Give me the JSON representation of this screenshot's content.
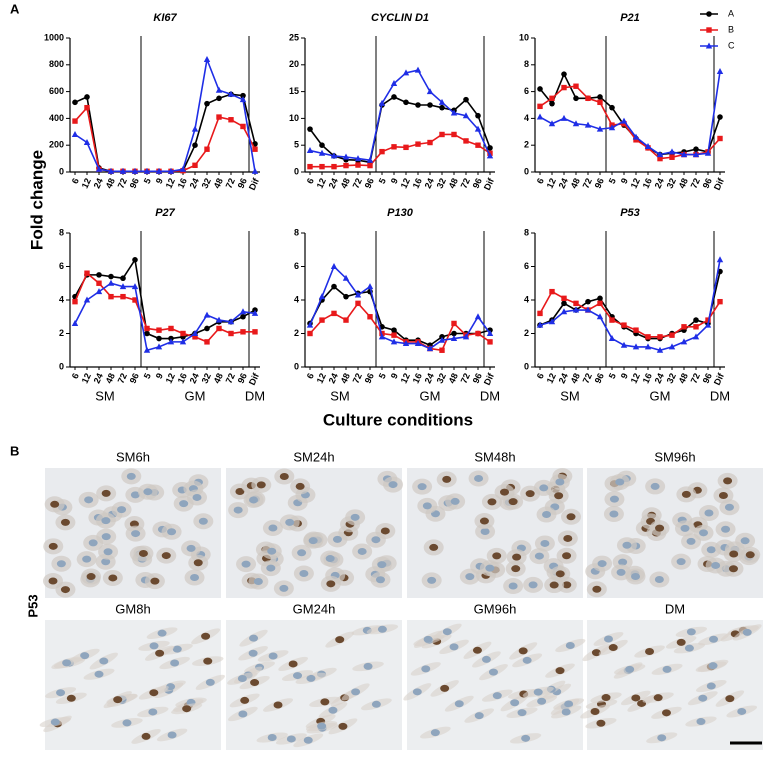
{
  "panel_labels": [
    "A",
    "B"
  ],
  "y_label": "Fold change",
  "x_label": "Culture conditions",
  "legend_position": "top-right",
  "chart_data": [
    {
      "type": "line",
      "title": "KI67",
      "categories": [
        "6",
        "12",
        "24",
        "48",
        "72",
        "96",
        "5",
        "9",
        "12",
        "16",
        "24",
        "32",
        "48",
        "72",
        "96",
        "Dif"
      ],
      "ylim": [
        0,
        1000
      ],
      "yticks": [
        0,
        200,
        400,
        600,
        800,
        1000
      ],
      "series": [
        {
          "name": "A",
          "color": "#000000",
          "marker": "circle",
          "values": [
            520,
            560,
            30,
            5,
            5,
            5,
            5,
            5,
            5,
            10,
            200,
            510,
            550,
            580,
            570,
            210
          ]
        },
        {
          "name": "B",
          "color": "#e8191b",
          "marker": "square",
          "values": [
            380,
            480,
            20,
            5,
            5,
            5,
            5,
            5,
            5,
            10,
            50,
            170,
            410,
            390,
            340,
            170
          ]
        },
        {
          "name": "C",
          "color": "#1f2ee6",
          "marker": "triangle",
          "values": [
            280,
            220,
            20,
            5,
            5,
            5,
            5,
            5,
            5,
            20,
            320,
            840,
            610,
            580,
            540,
            5
          ]
        }
      ]
    },
    {
      "type": "line",
      "title": "CYCLIN D1",
      "categories": [
        "6",
        "12",
        "24",
        "48",
        "72",
        "96",
        "5",
        "9",
        "12",
        "16",
        "24",
        "32",
        "48",
        "72",
        "96",
        "Dif"
      ],
      "ylim": [
        0,
        25
      ],
      "yticks": [
        0,
        5,
        10,
        15,
        20,
        25
      ],
      "series": [
        {
          "color": "#000000",
          "marker": "circle",
          "values": [
            8,
            5,
            3,
            2.3,
            2.2,
            1.8,
            12.5,
            14,
            13,
            12.5,
            12.5,
            12,
            11.5,
            13.5,
            10.5,
            4.5
          ]
        },
        {
          "color": "#e8191b",
          "marker": "square",
          "values": [
            1,
            1,
            1,
            1.2,
            1.3,
            1.2,
            3.8,
            4.7,
            4.6,
            5.2,
            5.5,
            7,
            7,
            5.8,
            5,
            3.5
          ]
        },
        {
          "color": "#1f2ee6",
          "marker": "triangle",
          "values": [
            4,
            3.5,
            3,
            2.8,
            2.5,
            2.2,
            12.8,
            16.5,
            18.5,
            19,
            15,
            13,
            11,
            10.5,
            8,
            3
          ]
        }
      ]
    },
    {
      "type": "line",
      "title": "P21",
      "categories": [
        "6",
        "12",
        "24",
        "48",
        "72",
        "96",
        "5",
        "9",
        "12",
        "16",
        "24",
        "32",
        "48",
        "72",
        "96",
        "Dif"
      ],
      "ylim": [
        0,
        10
      ],
      "yticks": [
        0,
        2,
        4,
        6,
        8,
        10
      ],
      "series": [
        {
          "color": "#000000",
          "marker": "circle",
          "values": [
            6.2,
            5.1,
            7.3,
            5.5,
            5.5,
            5.6,
            4.8,
            3.5,
            2.5,
            1.8,
            1.3,
            1.4,
            1.5,
            1.7,
            1.5,
            4.1
          ]
        },
        {
          "color": "#e8191b",
          "marker": "square",
          "values": [
            4.9,
            5.5,
            6.3,
            6.4,
            5.5,
            5.2,
            3.5,
            3.6,
            2.4,
            1.8,
            1.0,
            1.1,
            1.3,
            1.3,
            1.5,
            2.5
          ]
        },
        {
          "color": "#1f2ee6",
          "marker": "triangle",
          "values": [
            4.1,
            3.6,
            4.0,
            3.6,
            3.5,
            3.2,
            3.3,
            3.8,
            2.6,
            1.9,
            1.3,
            1.5,
            1.3,
            1.3,
            1.4,
            7.5
          ]
        }
      ]
    },
    {
      "type": "line",
      "title": "P27",
      "categories": [
        "6",
        "12",
        "24",
        "48",
        "72",
        "96",
        "5",
        "9",
        "12",
        "16",
        "24",
        "32",
        "48",
        "72",
        "96",
        "Dif"
      ],
      "groups": [
        "SM",
        "GM",
        "DM"
      ],
      "ylim": [
        0,
        8
      ],
      "yticks": [
        0,
        2,
        4,
        6,
        8
      ],
      "series": [
        {
          "color": "#000000",
          "marker": "circle",
          "values": [
            4.2,
            5.5,
            5.5,
            5.4,
            5.3,
            6.4,
            2.0,
            1.7,
            1.7,
            1.8,
            2.0,
            2.3,
            2.7,
            2.7,
            3.0,
            3.4
          ]
        },
        {
          "color": "#e8191b",
          "marker": "square",
          "values": [
            3.9,
            5.6,
            5.0,
            4.2,
            4.2,
            4.0,
            2.3,
            2.2,
            2.3,
            2.0,
            1.8,
            1.5,
            2.3,
            2.0,
            2.1,
            2.1
          ]
        },
        {
          "color": "#1f2ee6",
          "marker": "triangle",
          "values": [
            2.6,
            4.0,
            4.5,
            5.0,
            4.8,
            4.8,
            1.0,
            1.2,
            1.5,
            1.5,
            2.0,
            3.1,
            2.8,
            2.7,
            3.3,
            3.2
          ]
        }
      ]
    },
    {
      "type": "line",
      "title": "P130",
      "categories": [
        "6",
        "12",
        "24",
        "48",
        "72",
        "96",
        "5",
        "9",
        "12",
        "16",
        "24",
        "32",
        "48",
        "72",
        "96",
        "Dif"
      ],
      "groups": [
        "SM",
        "GM",
        "DM"
      ],
      "ylim": [
        0,
        8
      ],
      "yticks": [
        0,
        2,
        4,
        6,
        8
      ],
      "series": [
        {
          "color": "#000000",
          "marker": "circle",
          "values": [
            2.6,
            4.0,
            4.8,
            4.2,
            4.4,
            4.5,
            2.4,
            2.2,
            1.6,
            1.6,
            1.3,
            1.8,
            2.0,
            2.0,
            2.0,
            2.2
          ]
        },
        {
          "color": "#e8191b",
          "marker": "square",
          "values": [
            2.0,
            2.8,
            3.2,
            2.8,
            3.8,
            3.0,
            2.0,
            1.9,
            1.5,
            1.5,
            1.1,
            1.0,
            2.6,
            1.9,
            2.0,
            1.5
          ]
        },
        {
          "color": "#1f2ee6",
          "marker": "triangle",
          "values": [
            2.5,
            4.2,
            6.0,
            5.3,
            4.3,
            4.8,
            1.8,
            1.5,
            1.4,
            1.4,
            1.1,
            1.6,
            1.7,
            1.8,
            3.0,
            2.0
          ]
        }
      ]
    },
    {
      "type": "line",
      "title": "P53",
      "categories": [
        "6",
        "12",
        "24",
        "48",
        "72",
        "96",
        "5",
        "9",
        "12",
        "16",
        "24",
        "32",
        "48",
        "72",
        "96",
        "Dif"
      ],
      "groups": [
        "SM",
        "GM",
        "DM"
      ],
      "ylim": [
        0,
        8
      ],
      "yticks": [
        0,
        2,
        4,
        6,
        8
      ],
      "series": [
        {
          "color": "#000000",
          "marker": "circle",
          "values": [
            2.5,
            2.8,
            3.8,
            3.4,
            3.9,
            4.1,
            3.0,
            2.4,
            2.0,
            1.7,
            1.7,
            2.0,
            2.2,
            2.8,
            2.6,
            5.7
          ]
        },
        {
          "color": "#e8191b",
          "marker": "square",
          "values": [
            3.2,
            4.5,
            4.1,
            3.8,
            3.4,
            3.8,
            2.8,
            2.5,
            2.2,
            1.8,
            1.8,
            1.9,
            2.4,
            2.4,
            2.8,
            3.9
          ]
        },
        {
          "color": "#1f2ee6",
          "marker": "triangle",
          "values": [
            2.5,
            2.7,
            3.3,
            3.4,
            3.4,
            3.0,
            1.7,
            1.3,
            1.2,
            1.2,
            1.0,
            1.2,
            1.5,
            1.8,
            2.5,
            6.4
          ]
        }
      ]
    }
  ],
  "images": {
    "row_label": "P53",
    "labels": [
      "SM6h",
      "SM24h",
      "SM48h",
      "SM96h",
      "GM8h",
      "GM24h",
      "GM96h",
      "DM"
    ]
  }
}
